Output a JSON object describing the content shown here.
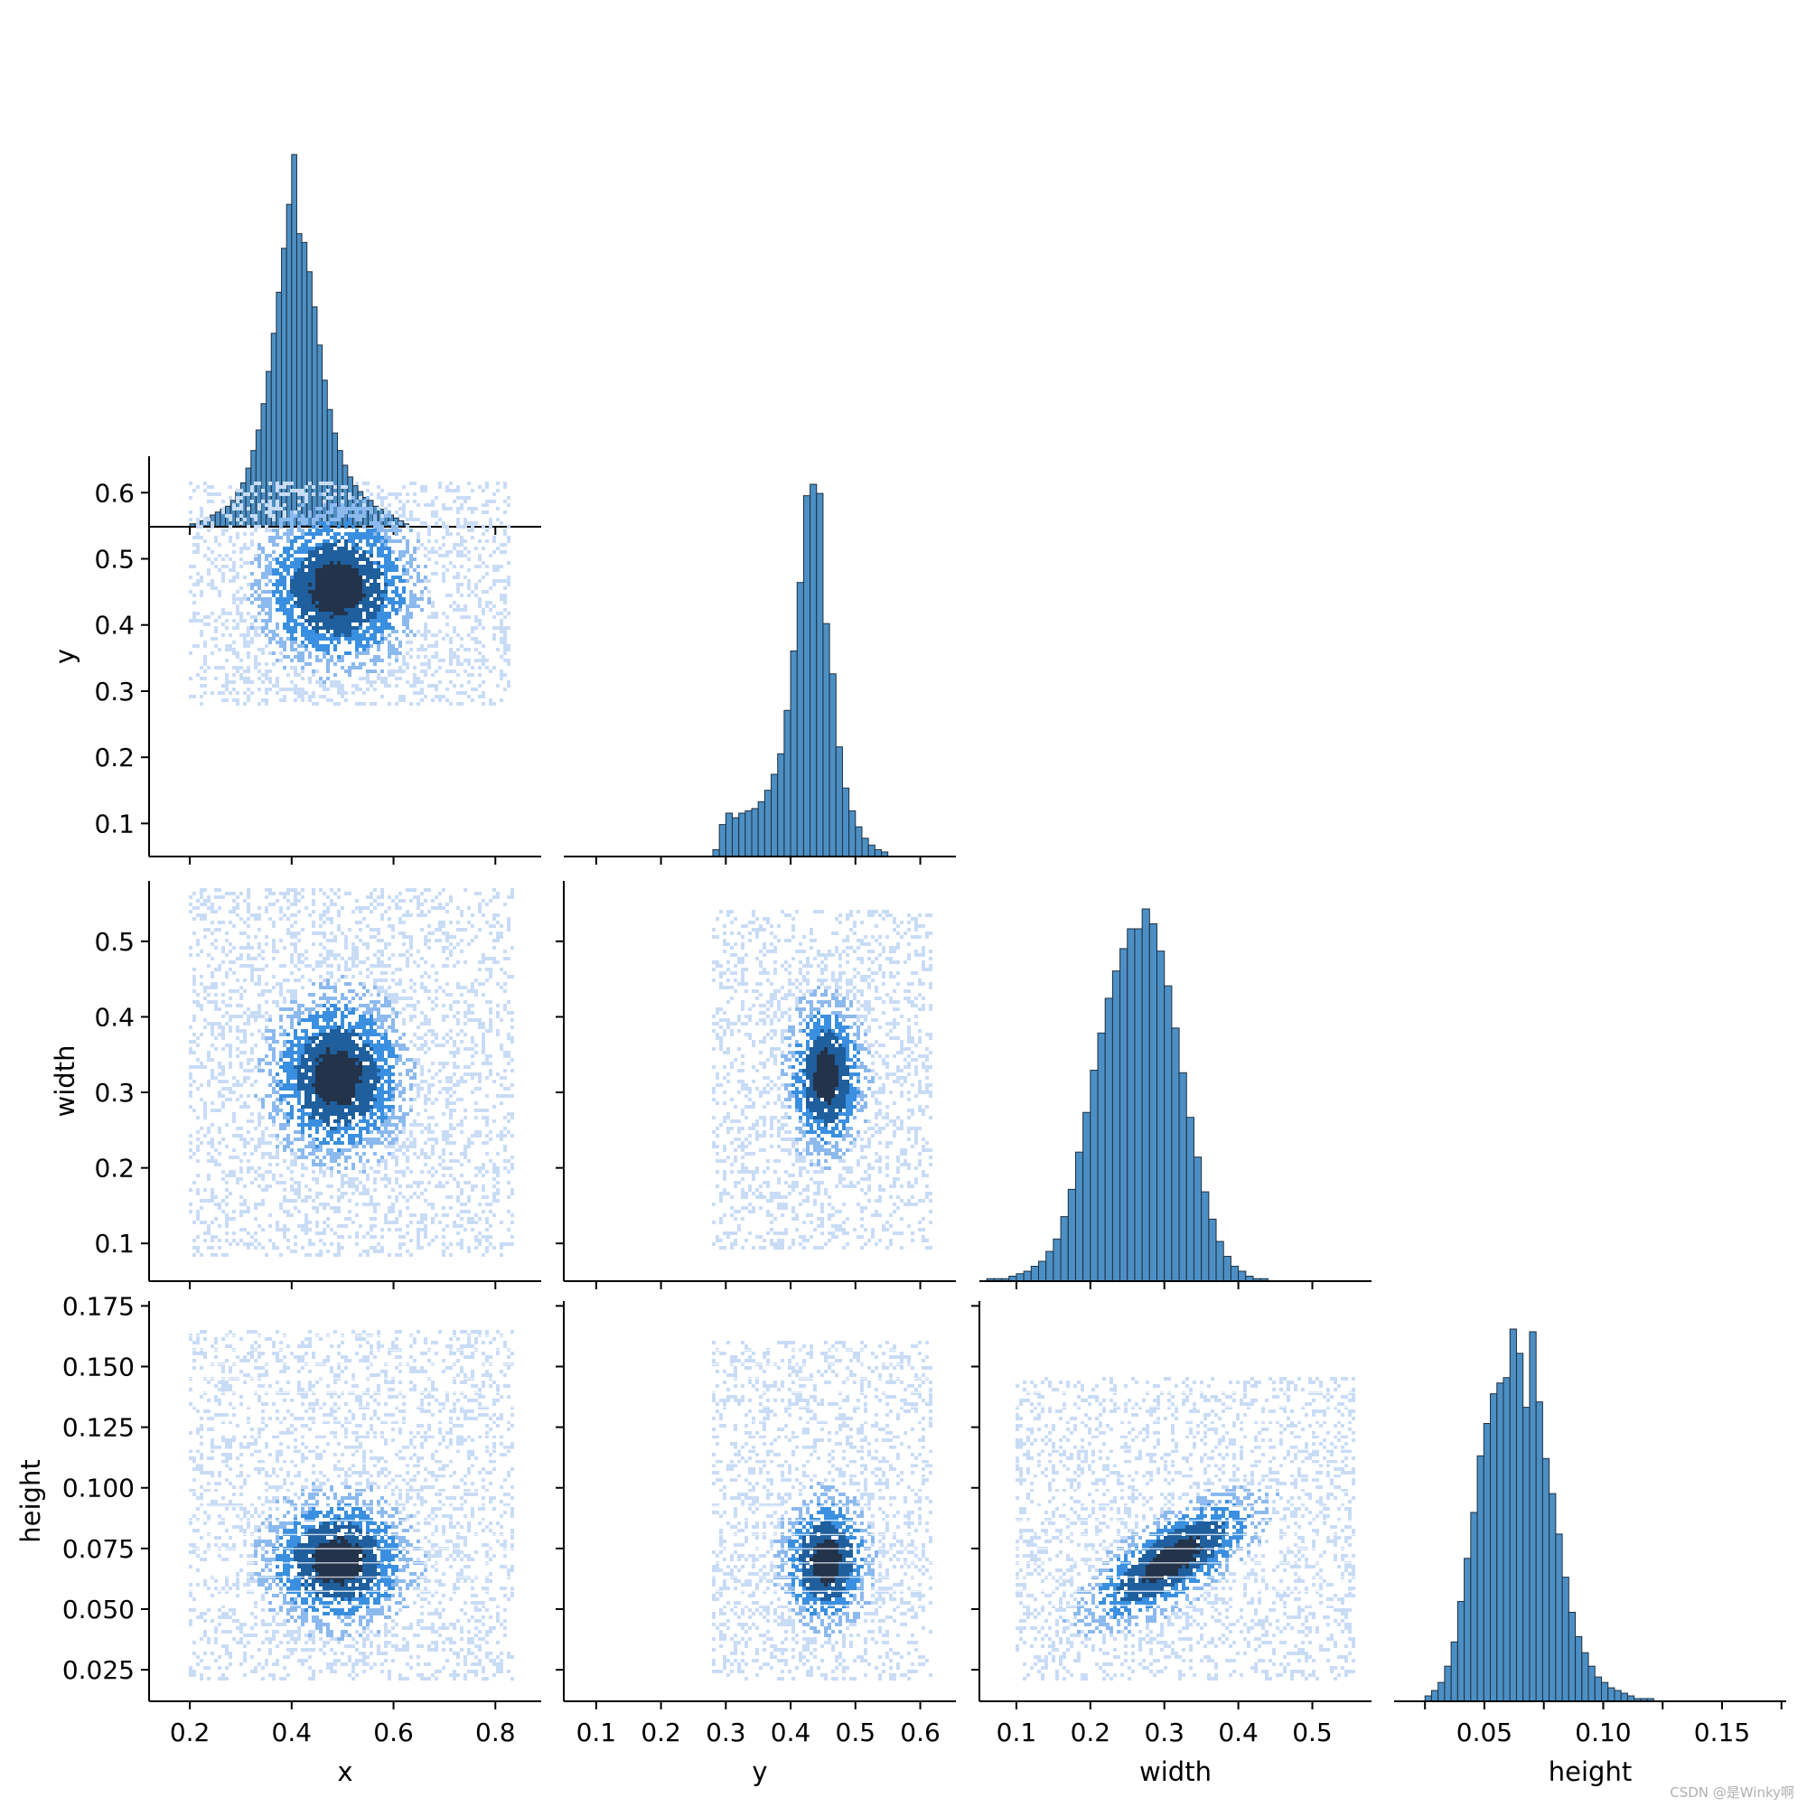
{
  "chart_data": {
    "type": "pairplot",
    "layout": "corner",
    "variables": [
      "x",
      "y",
      "width",
      "height"
    ],
    "bar_color": "#4c8fc4",
    "bar_edge_color": "#1f2f3f",
    "density_colors": [
      "#c9dcf6",
      "#8cb9ee",
      "#3a8fe0",
      "#1f5f9e",
      "#23334a"
    ],
    "axes": {
      "x": {
        "label": "x",
        "range": [
          0.12,
          0.89
        ],
        "ticks": [
          0.2,
          0.4,
          0.6,
          0.8
        ],
        "tick_labels": [
          "0.2",
          "0.4",
          "0.6",
          "0.8"
        ]
      },
      "y": {
        "label": "y",
        "range": [
          0.05,
          0.655
        ],
        "ticks": [
          0.1,
          0.2,
          0.3,
          0.4,
          0.5,
          0.6
        ],
        "tick_labels": [
          "0.1",
          "0.2",
          "0.3",
          "0.4",
          "0.5",
          "0.6"
        ]
      },
      "width": {
        "label": "width",
        "range": [
          0.05,
          0.58
        ],
        "ticks": [
          0.1,
          0.2,
          0.3,
          0.4,
          0.5
        ],
        "tick_labels": [
          "0.1",
          "0.2",
          "0.3",
          "0.4",
          "0.5"
        ]
      },
      "height": {
        "label": "height",
        "range": [
          0.012,
          0.177
        ],
        "ticks": [
          0.025,
          0.05,
          0.075,
          0.1,
          0.125,
          0.15,
          0.175
        ],
        "tick_labels": [
          "0.025",
          "0.050",
          "0.075",
          "0.100",
          "0.125",
          "0.150",
          "0.175"
        ]
      }
    },
    "x_tick_labels_height_diag": [
      "0.05",
      "0.10",
      "0.15"
    ],
    "histograms": {
      "x": {
        "bin_start": 0.2,
        "bin_width": 0.01,
        "counts": [
          1,
          1,
          2,
          3,
          4,
          5,
          6,
          7,
          9,
          12,
          15,
          20,
          26,
          33,
          42,
          53,
          66,
          80,
          95,
          110,
          127,
          100,
          97,
          87,
          75,
          62,
          50,
          40,
          32,
          26,
          21,
          17,
          14,
          12,
          10,
          9,
          7,
          6,
          5,
          4,
          3,
          2,
          1
        ]
      },
      "y": {
        "bin_start": 0.28,
        "bin_width": 0.01,
        "counts": [
          3,
          14,
          19,
          17,
          19,
          20,
          21,
          24,
          29,
          36,
          45,
          64,
          90,
          120,
          158,
          163,
          159,
          102,
          80,
          48,
          30,
          20,
          13,
          8,
          5,
          3,
          2
        ]
      },
      "width": {
        "bin_start": 0.06,
        "bin_width": 0.01,
        "counts": [
          1,
          1,
          1,
          2,
          3,
          4,
          6,
          8,
          12,
          17,
          26,
          37,
          52,
          68,
          85,
          100,
          114,
          125,
          134,
          142,
          142,
          150,
          144,
          133,
          119,
          102,
          84,
          66,
          50,
          36,
          25,
          16,
          10,
          6,
          4,
          2,
          1,
          1
        ]
      },
      "height": {
        "bin_start": 0.025,
        "bin_width": 0.00275,
        "counts": [
          2,
          4,
          7,
          13,
          22,
          37,
          53,
          70,
          91,
          103,
          114,
          118,
          120,
          138,
          129,
          109,
          137,
          111,
          90,
          77,
          62,
          46,
          33,
          24,
          18,
          13,
          9,
          7,
          5,
          4,
          3,
          2,
          1,
          1,
          1
        ]
      }
    },
    "scatter_clouds": {
      "y_vs_x": {
        "center": [
          0.49,
          0.455
        ],
        "spread": [
          0.09,
          0.07
        ],
        "bounds": [
          [
            0.2,
            0.83
          ],
          [
            0.28,
            0.615
          ]
        ],
        "correlation": 0.0
      },
      "width_vs_x": {
        "center": [
          0.49,
          0.32
        ],
        "spread": [
          0.08,
          0.065
        ],
        "bounds": [
          [
            0.2,
            0.84
          ],
          [
            0.08,
            0.57
          ]
        ],
        "correlation": 0.0
      },
      "width_vs_y": {
        "center": [
          0.455,
          0.32
        ],
        "spread": [
          0.035,
          0.06
        ],
        "bounds": [
          [
            0.28,
            0.62
          ],
          [
            0.09,
            0.54
          ]
        ],
        "correlation": 0.0
      },
      "height_vs_x": {
        "center": [
          0.49,
          0.07
        ],
        "spread": [
          0.085,
          0.016
        ],
        "bounds": [
          [
            0.2,
            0.84
          ],
          [
            0.02,
            0.165
          ]
        ],
        "correlation": 0.0
      },
      "height_vs_y": {
        "center": [
          0.455,
          0.07
        ],
        "spread": [
          0.04,
          0.016
        ],
        "bounds": [
          [
            0.28,
            0.62
          ],
          [
            0.02,
            0.16
          ]
        ],
        "correlation": 0.0
      },
      "height_vs_width": {
        "center": [
          0.31,
          0.07
        ],
        "spread": [
          0.07,
          0.016
        ],
        "bounds": [
          [
            0.1,
            0.56
          ],
          [
            0.02,
            0.145
          ]
        ],
        "correlation": 0.72
      }
    },
    "watermark": "CSDN @是Winky啊"
  }
}
